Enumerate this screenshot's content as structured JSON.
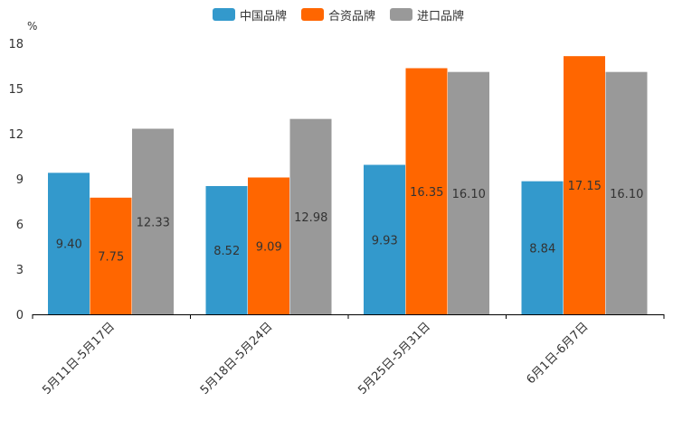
{
  "chart_data": {
    "type": "bar",
    "unit": "%",
    "categories": [
      "5月11日-5月17日",
      "5月18日-5月24日",
      "5月25日-5月31日",
      "6月1日-6月7日"
    ],
    "series": [
      {
        "name": "中国品牌",
        "color": "#3399cc",
        "values": [
          9.4,
          8.52,
          9.93,
          8.84
        ],
        "labels": [
          "9.40",
          "8.52",
          "9.93",
          "8.84"
        ]
      },
      {
        "name": "合资品牌",
        "color": "#ff6600",
        "values": [
          7.75,
          9.09,
          16.35,
          17.15
        ],
        "labels": [
          "7.75",
          "9.09",
          "16.35",
          "17.15"
        ]
      },
      {
        "name": "进口品牌",
        "color": "#999999",
        "values": [
          12.33,
          12.98,
          16.1,
          16.1
        ],
        "labels": [
          "12.33",
          "12.98",
          "16.10",
          "16.10"
        ]
      }
    ],
    "ylim": [
      0,
      18
    ],
    "yticks": [
      "0",
      "3",
      "6",
      "9",
      "12",
      "15",
      "18"
    ],
    "legend_position": "top-center",
    "grid": false
  }
}
